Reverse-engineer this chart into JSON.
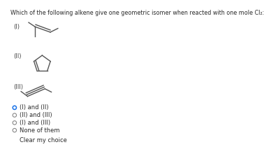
{
  "title": "Which of the following alkene give one geometric isomer when reacted with one mole Cl₂:",
  "bg_color": "#ffffff",
  "text_color": "#2a2a2a",
  "label_color": "#444444",
  "selected_color": "#1a73e8",
  "unselected_color": "#888888",
  "options": [
    "(I) and (II)",
    "(II) and (III)",
    "(I) and (III)",
    "None of them"
  ],
  "selected_index": 0,
  "clear_text": "Clear my choice",
  "structure_labels": [
    "(I)",
    "(II)",
    "(III)"
  ],
  "title_fontsize": 5.8,
  "option_fontsize": 6.0,
  "label_fontsize": 6.0,
  "bond_color": "#555555",
  "bond_lw": 1.0
}
